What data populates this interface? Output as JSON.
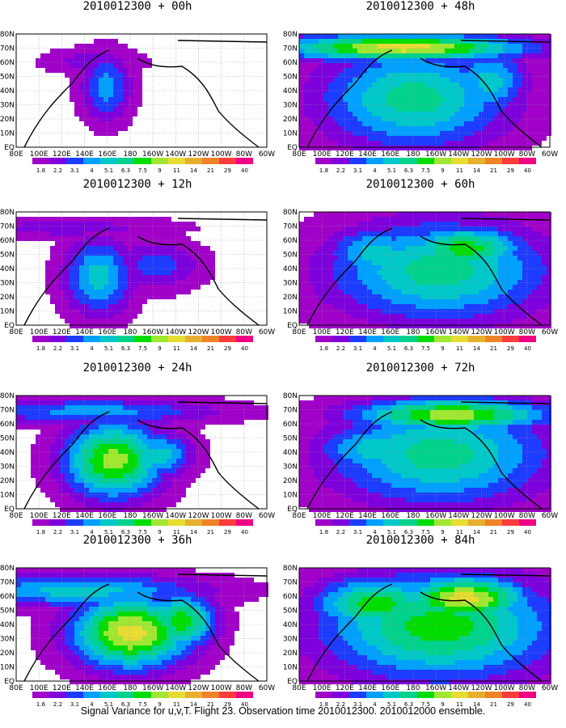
{
  "chart_data": {
    "type": "heatmap",
    "caption": "Signal Variance for u,v,T. Flight 23. Observation time 2010012300. 2010012000 ensemble.",
    "colorbar_levels": [
      "1.8",
      "2.2",
      "3.1",
      "4",
      "5.1",
      "6.3",
      "7.5",
      "9",
      "11",
      "14",
      "21",
      "29",
      "40"
    ],
    "colorbar_levels_36h": [
      "1.6",
      "2.2",
      "3.1",
      "4",
      "5.1",
      "6.3",
      "7.5",
      "9",
      "11",
      "14",
      "21",
      "29",
      "40"
    ],
    "colorbar_colors": [
      "#a000c8",
      "#7d00dc",
      "#1e3cff",
      "#00a0ff",
      "#00c8c8",
      "#00d28c",
      "#00dc00",
      "#a0e632",
      "#e6dc32",
      "#e6af2d",
      "#f08228",
      "#fa3c3c",
      "#f00082"
    ],
    "x_tick_labels": [
      "80E",
      "100E",
      "120E",
      "140E",
      "160E",
      "180",
      "160W",
      "140W",
      "120W",
      "100W",
      "80W",
      "60W"
    ],
    "y_tick_labels": [
      "80N",
      "70N",
      "60N",
      "50N",
      "40N",
      "30N",
      "20N",
      "10N",
      "EQ"
    ],
    "panels": [
      {
        "title": "2010012300 + 00h",
        "valid_hour": 0
      },
      {
        "title": "2010012300 + 12h",
        "valid_hour": 12
      },
      {
        "title": "2010012300 + 24h",
        "valid_hour": 24
      },
      {
        "title": "2010012300 + 36h",
        "valid_hour": 36
      },
      {
        "title": "2010012300 + 48h",
        "valid_hour": 48
      },
      {
        "title": "2010012300 + 60h",
        "valid_hour": 60
      },
      {
        "title": "2010012300 + 72h",
        "valid_hour": 72
      },
      {
        "title": "2010012300 + 84h",
        "valid_hour": 84
      }
    ]
  }
}
